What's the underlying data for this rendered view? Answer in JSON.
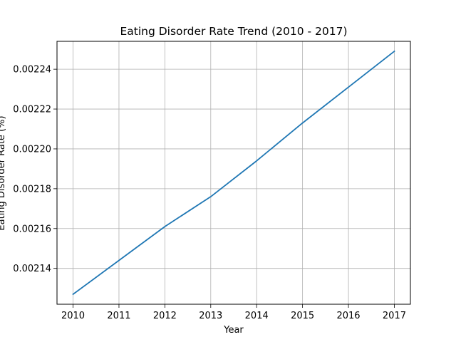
{
  "chart_data": {
    "type": "line",
    "title": "Eating Disorder Rate Trend (2010 - 2017)",
    "xlabel": "Year",
    "ylabel": "Eating Disorder Rate (%)",
    "x": [
      2010,
      2011,
      2012,
      2013,
      2014,
      2015,
      2016,
      2017
    ],
    "series": [
      {
        "values": [
          0.002127,
          0.002144,
          0.002161,
          0.002176,
          0.002194,
          0.002213,
          0.002231,
          0.002249
        ],
        "color": "#1f77b4"
      }
    ],
    "xticks": [
      "2010",
      "2011",
      "2012",
      "2013",
      "2014",
      "2015",
      "2016",
      "2017"
    ],
    "yticks": [
      "0.00214",
      "0.00216",
      "0.00218",
      "0.00220",
      "0.00222",
      "0.00224"
    ],
    "ylim": [
      0.002122,
      0.002254
    ],
    "xlim": [
      2009.65,
      2017.35
    ],
    "grid": true
  }
}
